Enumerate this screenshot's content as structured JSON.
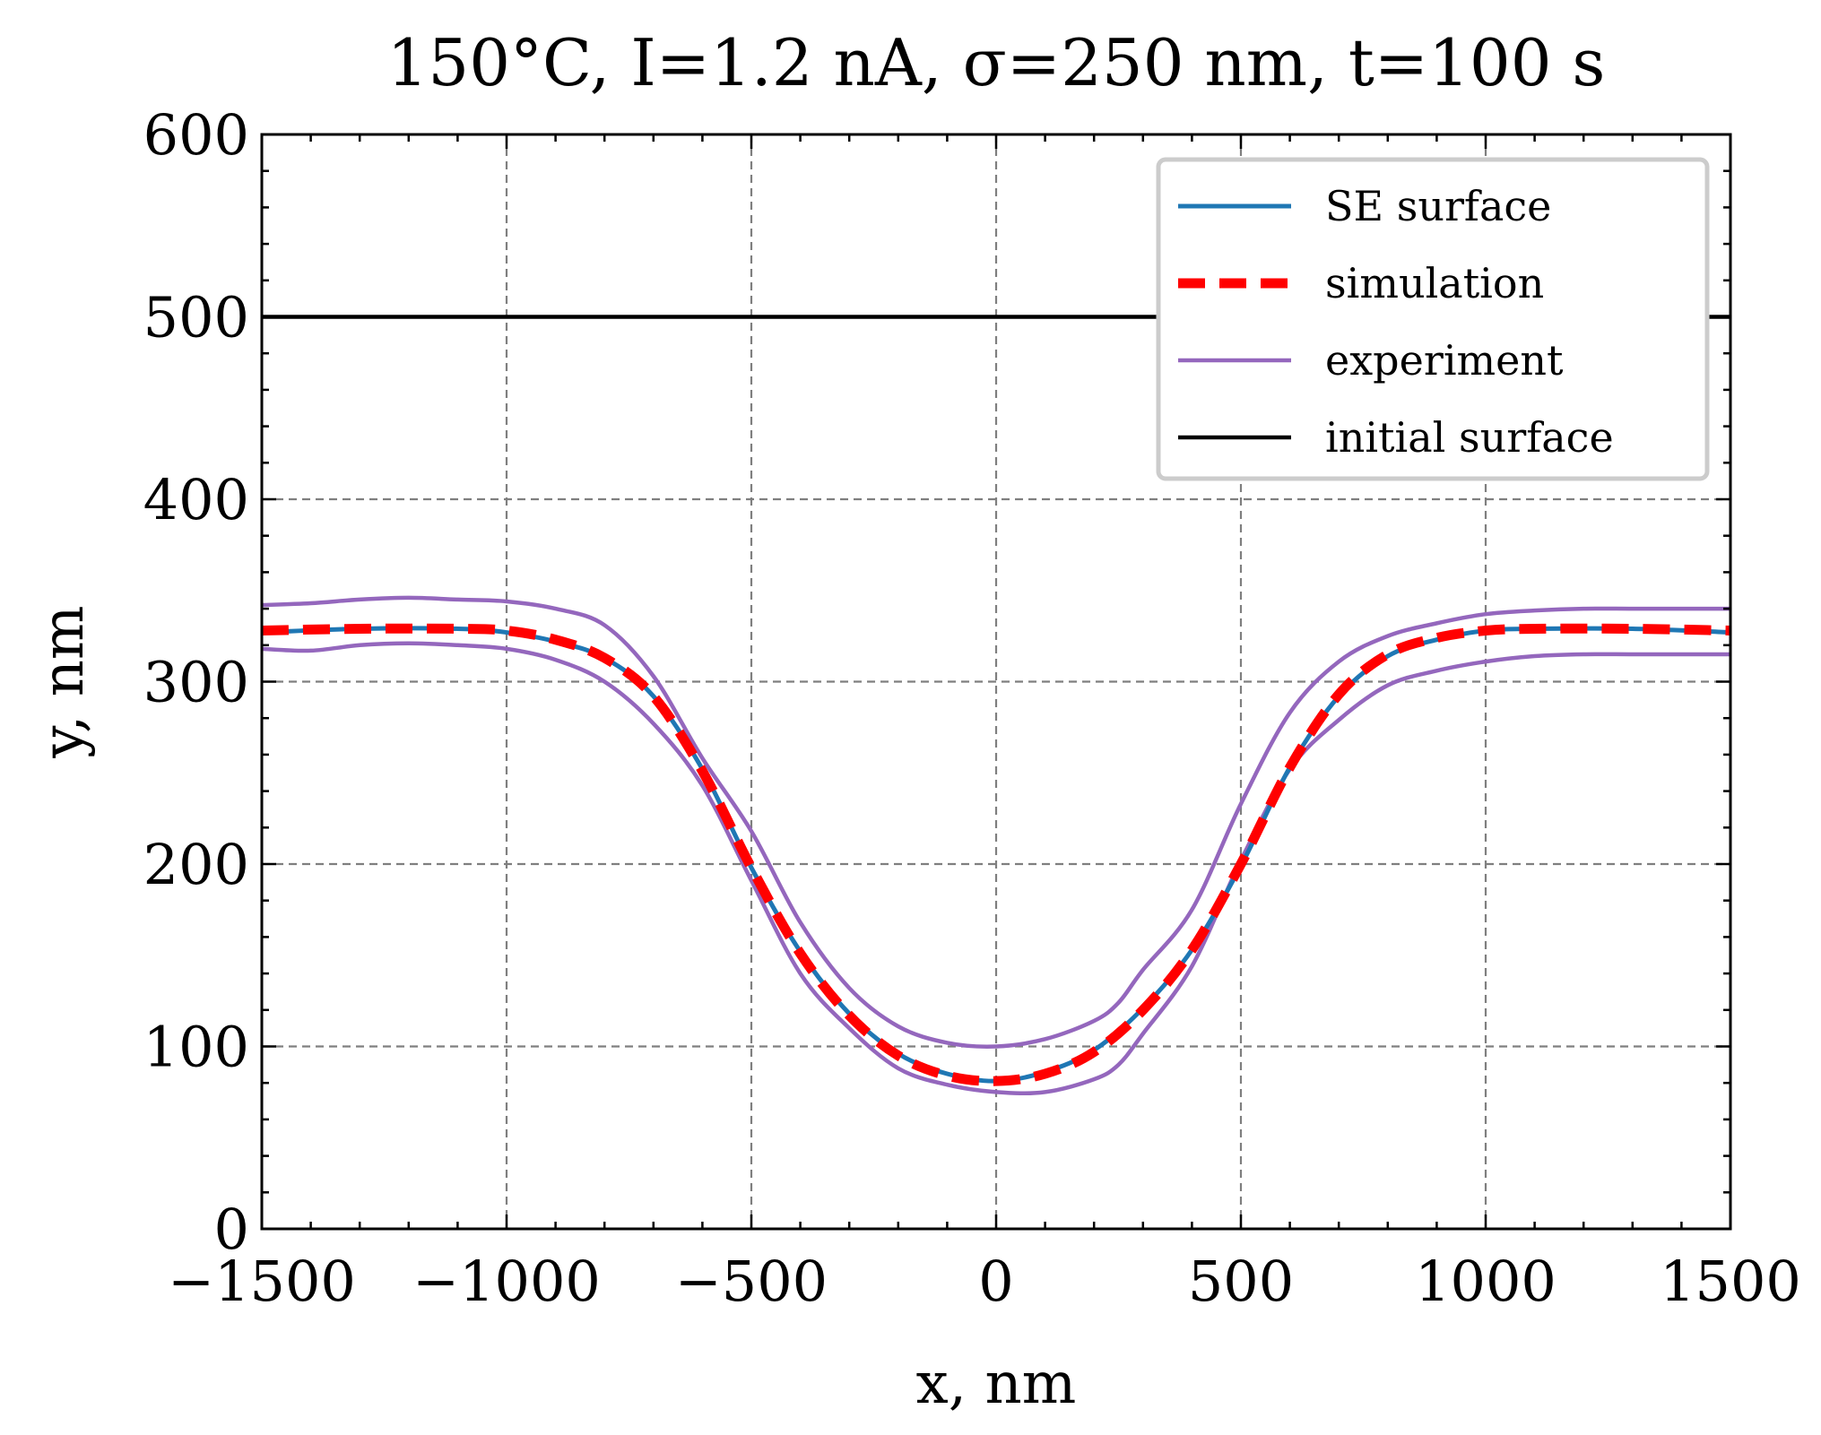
{
  "chart_data": {
    "type": "line",
    "title": "150°C, I=1.2 nA, σ=250 nm, t=100 s",
    "xlabel": "x, nm",
    "ylabel": "y, nm",
    "xlim": [
      -1500,
      1500
    ],
    "ylim": [
      0,
      600
    ],
    "xticks": [
      -1500,
      -1000,
      -500,
      0,
      500,
      1000,
      1500
    ],
    "xtick_labels": [
      "−1500",
      "−1000",
      "−500",
      "0",
      "500",
      "1000",
      "1500"
    ],
    "yticks": [
      0,
      100,
      200,
      300,
      400,
      500,
      600
    ],
    "ytick_labels": [
      "0",
      "100",
      "200",
      "300",
      "400",
      "500",
      "600"
    ],
    "grid": true,
    "legend_position": "top-right",
    "series": [
      {
        "name": "SE surface",
        "color": "#1f77b4",
        "style": "solid",
        "x": [
          -1500,
          -1300,
          -1100,
          -1000,
          -900,
          -800,
          -700,
          -600,
          -500,
          -400,
          -300,
          -200,
          -100,
          0,
          100,
          200,
          300,
          400,
          500,
          600,
          700,
          800,
          900,
          1000,
          1100,
          1300,
          1500
        ],
        "y": [
          327,
          329,
          329,
          327,
          322,
          313,
          292,
          252,
          198,
          152,
          118,
          96,
          85,
          81,
          86,
          98,
          121,
          153,
          199,
          253,
          292,
          314,
          323,
          328,
          329,
          329,
          327
        ]
      },
      {
        "name": "simulation",
        "color": "#ff0000",
        "style": "dashed",
        "x": [
          -1500,
          -1300,
          -1100,
          -1000,
          -900,
          -800,
          -700,
          -600,
          -500,
          -400,
          -300,
          -200,
          -100,
          0,
          100,
          200,
          300,
          400,
          500,
          600,
          700,
          800,
          900,
          1000,
          1100,
          1300,
          1500
        ],
        "y": [
          328,
          329,
          329,
          328,
          323,
          313,
          292,
          251,
          198,
          151,
          117,
          95,
          84,
          81,
          85,
          97,
          120,
          153,
          200,
          253,
          293,
          315,
          324,
          328,
          329,
          329,
          328
        ]
      },
      {
        "name": "experiment",
        "color": "#9467bd",
        "style": "solid",
        "x": [
          -1500,
          -1400,
          -1300,
          -1200,
          -1100,
          -1000,
          -900,
          -800,
          -700,
          -600,
          -500,
          -400,
          -300,
          -200,
          -100,
          0,
          100,
          200,
          250,
          300,
          400,
          500,
          600,
          700,
          800,
          900,
          1000,
          1100,
          1200,
          1300,
          1400,
          1500
        ],
        "y": [
          342,
          343,
          345,
          346,
          345,
          344,
          340,
          331,
          303,
          258,
          218,
          168,
          132,
          111,
          102,
          100,
          104,
          114,
          124,
          142,
          175,
          233,
          283,
          311,
          325,
          332,
          337,
          339,
          340,
          340,
          340,
          340
        ]
      },
      {
        "name": "",
        "color": "#9467bd",
        "style": "solid",
        "x": [
          -1500,
          -1400,
          -1300,
          -1200,
          -1100,
          -1000,
          -900,
          -800,
          -700,
          -600,
          -500,
          -400,
          -300,
          -200,
          -100,
          0,
          100,
          200,
          250,
          300,
          400,
          500,
          600,
          700,
          800,
          900,
          1000,
          1100,
          1200,
          1300,
          1400,
          1500
        ],
        "y": [
          318,
          317,
          320,
          321,
          320,
          318,
          312,
          300,
          277,
          243,
          191,
          140,
          110,
          88,
          79,
          75,
          75,
          82,
          90,
          107,
          144,
          202,
          252,
          279,
          298,
          306,
          311,
          314,
          315,
          315,
          315,
          315
        ]
      },
      {
        "name": "initial surface",
        "color": "#000000",
        "style": "solid",
        "x": [
          -1500,
          1500
        ],
        "y": [
          500,
          500
        ]
      }
    ]
  }
}
